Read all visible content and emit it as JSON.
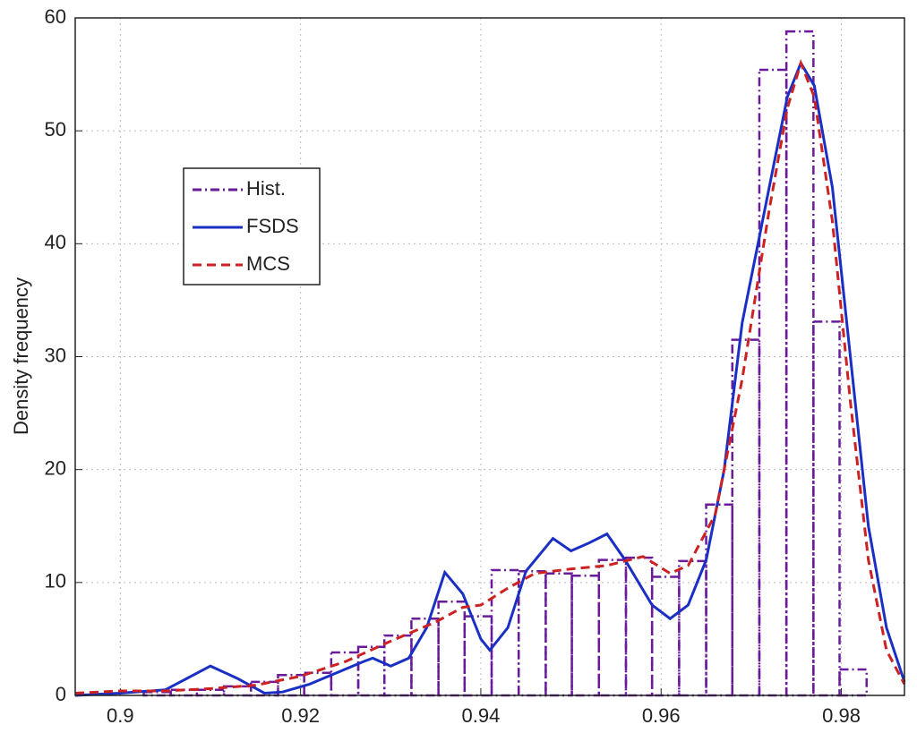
{
  "chart_data": {
    "type": "histogram",
    "y_label": "Density frequency",
    "xlim": [
      0.895,
      0.987
    ],
    "ylim": [
      0,
      60
    ],
    "xticks": [
      0.9,
      0.92,
      0.94,
      0.96,
      0.98
    ],
    "yticks": [
      0,
      10,
      20,
      30,
      40,
      50,
      60
    ],
    "grid": true,
    "legend": "upper left",
    "histogram": {
      "name": "Hist.",
      "color": "#6a1b9a",
      "bins": [
        0.9026,
        0.9056,
        0.9085,
        0.9115,
        0.9145,
        0.9175,
        0.9204,
        0.9234,
        0.9264,
        0.9293,
        0.9323,
        0.9353,
        0.9382,
        0.9412,
        0.9442,
        0.9472,
        0.9501,
        0.9531,
        0.9561,
        0.959,
        0.962,
        0.965,
        0.9679,
        0.9709,
        0.9739,
        0.9769,
        0.9798,
        0.9828
      ],
      "values": [
        0.3,
        0.5,
        0.5,
        0.8,
        1.2,
        1.8,
        2.0,
        3.8,
        4.3,
        5.3,
        6.8,
        8.3,
        7.0,
        11.1,
        11.0,
        10.8,
        10.6,
        12.0,
        12.2,
        10.5,
        11.9,
        16.9,
        31.5,
        55.4,
        58.8,
        33.1,
        2.3
      ]
    },
    "series": [
      {
        "name": "FSDS",
        "color": "#1a2fc4",
        "x": [
          0.895,
          0.9,
          0.905,
          0.91,
          0.913,
          0.916,
          0.918,
          0.921,
          0.924,
          0.927,
          0.928,
          0.93,
          0.932,
          0.934,
          0.936,
          0.938,
          0.94,
          0.941,
          0.943,
          0.945,
          0.948,
          0.95,
          0.952,
          0.954,
          0.956,
          0.959,
          0.961,
          0.963,
          0.965,
          0.967,
          0.969,
          0.972,
          0.974,
          0.9755,
          0.977,
          0.979,
          0.981,
          0.983,
          0.985,
          0.987
        ],
        "values": [
          0,
          0.2,
          0.5,
          2.6,
          1.5,
          0.2,
          0.3,
          1.0,
          2.0,
          3.0,
          3.3,
          2.6,
          3.3,
          6,
          10.9,
          9,
          5,
          4.0,
          6,
          11,
          13.9,
          12.8,
          13.5,
          14.3,
          12,
          8,
          6.8,
          8,
          12,
          20,
          33,
          45,
          53,
          56,
          54,
          45,
          30,
          15,
          6,
          1.2
        ]
      },
      {
        "name": "MCS",
        "color": "#cc2222",
        "x": [
          0.895,
          0.9,
          0.905,
          0.91,
          0.915,
          0.92,
          0.925,
          0.93,
          0.935,
          0.938,
          0.94,
          0.943,
          0.946,
          0.95,
          0.954,
          0.958,
          0.961,
          0.963,
          0.966,
          0.969,
          0.972,
          0.974,
          0.9755,
          0.977,
          0.979,
          0.981,
          0.983,
          0.985,
          0.987
        ],
        "values": [
          0.2,
          0.4,
          0.4,
          0.6,
          0.9,
          1.7,
          3.0,
          4.8,
          6.5,
          7.8,
          8.0,
          9.5,
          10.8,
          11.2,
          11.5,
          12.3,
          10.8,
          11.5,
          16,
          28,
          43,
          52,
          56,
          53,
          42,
          26,
          12,
          4,
          1
        ]
      }
    ]
  }
}
